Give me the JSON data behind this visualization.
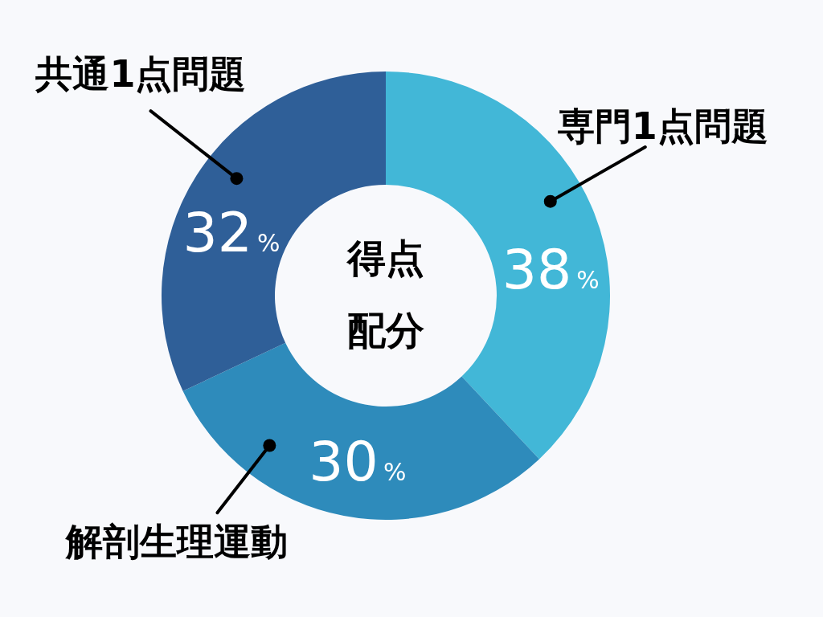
{
  "chart_data": {
    "type": "donut",
    "title": "得点配分",
    "categories": [
      "専門1点問題",
      "解剖生理運動",
      "共通1点問題"
    ],
    "values": [
      38,
      30,
      32
    ],
    "colors": [
      "#42b7d7",
      "#2e8bbb",
      "#2f5f98"
    ],
    "value_labels": [
      "38%",
      "30%",
      "32%"
    ]
  }
}
